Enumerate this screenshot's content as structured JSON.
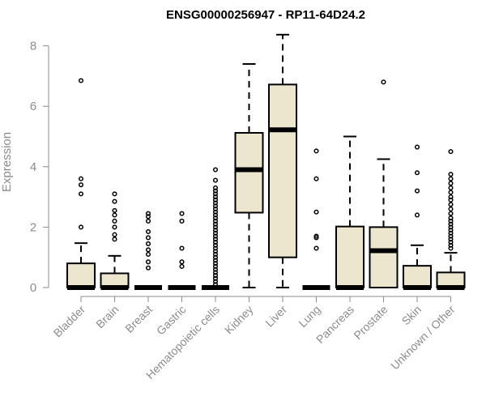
{
  "chart_data": {
    "type": "boxplot",
    "title": "ENSG00000256947 - RP11-64D24.2",
    "xlabel": "",
    "ylabel": "Expression",
    "ylim": [
      0,
      8.3
    ],
    "yticks": [
      0,
      2,
      4,
      6,
      8
    ],
    "box_fill": "#ede6cf",
    "categories": [
      "Bladder",
      "Brain",
      "Breast",
      "Gastric",
      "Hematopoietic cells",
      "Kidney",
      "Liver",
      "Lung",
      "Pancreas",
      "Prostate",
      "Skin",
      "Unknown / Other"
    ],
    "boxes": [
      {
        "name": "Bladder",
        "min": 0,
        "q1": 0,
        "median": 0,
        "q3": 0.8,
        "max": 1.47,
        "outliers": [
          2.0,
          3.1,
          3.4,
          3.6,
          6.85
        ]
      },
      {
        "name": "Brain",
        "min": 0,
        "q1": 0,
        "median": 0,
        "q3": 0.47,
        "max": 1.05,
        "outliers": [
          1.6,
          1.75,
          2.0,
          2.2,
          2.4,
          2.55,
          2.85,
          3.1
        ]
      },
      {
        "name": "Breast",
        "min": 0,
        "q1": 0,
        "median": 0,
        "q3": 0,
        "max": 0,
        "outliers": [
          0.65,
          0.85,
          1.1,
          1.25,
          1.45,
          1.65,
          1.85,
          2.2,
          2.35,
          2.45
        ]
      },
      {
        "name": "Gastric",
        "min": 0,
        "q1": 0,
        "median": 0,
        "q3": 0,
        "max": 0,
        "outliers": [
          0.7,
          0.85,
          1.3,
          2.2,
          2.45
        ]
      },
      {
        "name": "Hematopoietic cells",
        "min": 0,
        "q1": 0,
        "median": 0,
        "q3": 0,
        "max": 0,
        "outliers": [
          0.1,
          0.2,
          0.3,
          0.4,
          0.5,
          0.6,
          0.7,
          0.8,
          0.9,
          1.0,
          1.1,
          1.2,
          1.3,
          1.4,
          1.5,
          1.6,
          1.7,
          1.8,
          1.9,
          2.0,
          2.1,
          2.2,
          2.3,
          2.4,
          2.5,
          2.6,
          2.7,
          2.8,
          2.9,
          3.0,
          3.1,
          3.2,
          3.3,
          3.55,
          3.9
        ]
      },
      {
        "name": "Kidney",
        "min": 0,
        "q1": 2.48,
        "median": 3.9,
        "q3": 5.12,
        "max": 7.4,
        "outliers": []
      },
      {
        "name": "Liver",
        "min": 0,
        "q1": 1.0,
        "median": 5.22,
        "q3": 6.72,
        "max": 8.37,
        "outliers": []
      },
      {
        "name": "Lung",
        "min": 0,
        "q1": 0,
        "median": 0,
        "q3": 0,
        "max": 0,
        "outliers": [
          1.3,
          1.65,
          1.7,
          2.5,
          3.6,
          4.52
        ]
      },
      {
        "name": "Pancreas",
        "min": 0,
        "q1": 0,
        "median": 0,
        "q3": 2.02,
        "max": 5.0,
        "outliers": []
      },
      {
        "name": "Prostate",
        "min": 0,
        "q1": 0,
        "median": 1.22,
        "q3": 2.0,
        "max": 4.25,
        "outliers": [
          6.8
        ]
      },
      {
        "name": "Skin",
        "min": 0,
        "q1": 0,
        "median": 0,
        "q3": 0.72,
        "max": 1.4,
        "outliers": [
          2.4,
          3.2,
          3.8,
          4.65
        ]
      },
      {
        "name": "Unknown / Other",
        "min": 0,
        "q1": 0,
        "median": 0,
        "q3": 0.5,
        "max": 1.15,
        "outliers": [
          1.3,
          1.4,
          1.5,
          1.6,
          1.7,
          1.8,
          1.9,
          2.0,
          2.1,
          2.2,
          2.3,
          2.45,
          2.6,
          2.75,
          2.9,
          3.0,
          3.15,
          3.3,
          3.45,
          3.6,
          3.75,
          4.5
        ]
      }
    ]
  }
}
